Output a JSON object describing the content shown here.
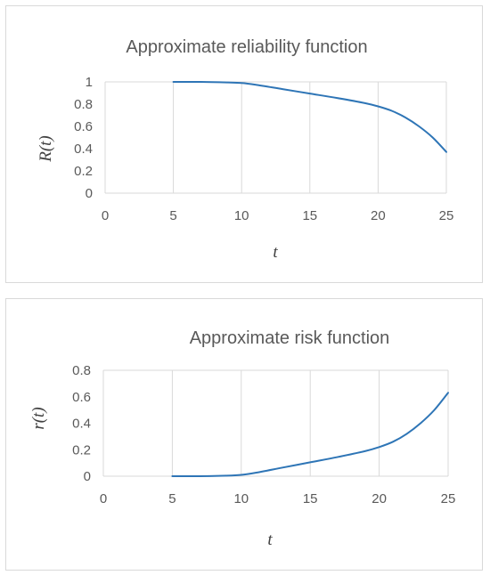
{
  "chart_data": [
    {
      "type": "line",
      "title": "Approximate reliability function",
      "xlabel": "t",
      "ylabel": "R(t)",
      "xlim": [
        0,
        25
      ],
      "ylim": [
        0,
        1
      ],
      "x_ticks": [
        "0",
        "5",
        "10",
        "15",
        "20",
        "25"
      ],
      "y_ticks": [
        "0",
        "0.2",
        "0.4",
        "0.6",
        "0.8",
        "1"
      ],
      "grid": "vertical",
      "legend": "none",
      "series": [
        {
          "color": "#2e75b6",
          "x": [
            5,
            7,
            9,
            10,
            11,
            13,
            15,
            17,
            19,
            20,
            21,
            22,
            23,
            24,
            25
          ],
          "y": [
            1.0,
            1.0,
            0.995,
            0.99,
            0.975,
            0.935,
            0.895,
            0.855,
            0.81,
            0.78,
            0.74,
            0.68,
            0.6,
            0.5,
            0.37
          ]
        }
      ]
    },
    {
      "type": "line",
      "title": "Approximate risk function",
      "xlabel": "t",
      "ylabel": "r(t)",
      "xlim": [
        0,
        25
      ],
      "ylim": [
        0,
        0.8
      ],
      "x_ticks": [
        "0",
        "5",
        "10",
        "15",
        "20",
        "25"
      ],
      "y_ticks": [
        "0",
        "0.2",
        "0.4",
        "0.6",
        "0.8"
      ],
      "grid": "vertical",
      "legend": "none",
      "series": [
        {
          "color": "#2e75b6",
          "x": [
            5,
            7,
            9,
            10,
            11,
            13,
            15,
            17,
            19,
            20,
            21,
            22,
            23,
            24,
            25
          ],
          "y": [
            0.0,
            0.0,
            0.004,
            0.01,
            0.025,
            0.065,
            0.105,
            0.145,
            0.19,
            0.22,
            0.26,
            0.32,
            0.4,
            0.5,
            0.63
          ]
        }
      ]
    }
  ]
}
